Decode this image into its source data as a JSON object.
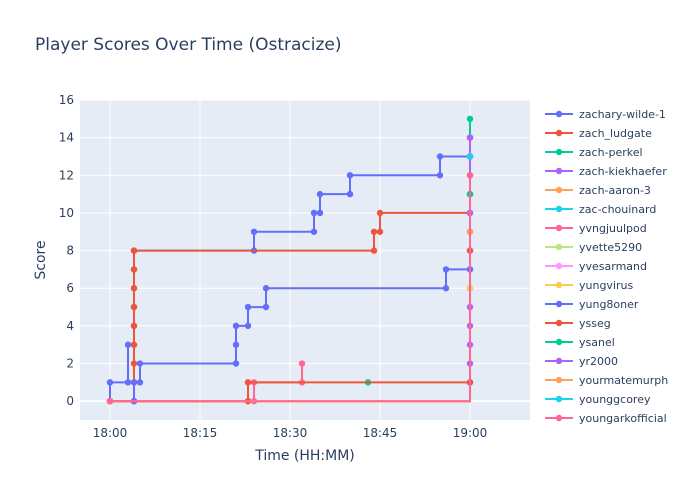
{
  "chart_data": {
    "type": "line",
    "line_shape": "step",
    "title": "Player Scores Over Time (Ostracize)",
    "xlabel": "Time (HH:MM)",
    "ylabel": "Score",
    "x_unit": "time HH:MM",
    "x_ticks": [
      "18:00",
      "18:15",
      "18:30",
      "18:45",
      "19:00"
    ],
    "xlim": [
      "17:55",
      "19:10"
    ],
    "ylim": [
      -1,
      16
    ],
    "y_ticks": [
      0,
      2,
      4,
      6,
      8,
      10,
      12,
      14,
      16
    ],
    "grid": true,
    "legend_position": "right",
    "plot_background": "#e5ecf6",
    "series": [
      {
        "name": "zachary-wilde-1",
        "color": "#636efa",
        "points": [
          [
            "18:00",
            0
          ],
          [
            "18:00",
            1
          ],
          [
            "18:03",
            1
          ],
          [
            "18:03",
            3
          ],
          [
            "18:04",
            3
          ],
          [
            "18:04",
            4
          ],
          [
            "18:04",
            5
          ],
          [
            "18:04",
            6
          ],
          [
            "18:04",
            7
          ],
          [
            "18:04",
            8
          ],
          [
            "18:24",
            8
          ],
          [
            "18:24",
            9
          ],
          [
            "18:34",
            9
          ],
          [
            "18:34",
            10
          ],
          [
            "18:35",
            10
          ],
          [
            "18:35",
            11
          ],
          [
            "18:40",
            11
          ],
          [
            "18:40",
            12
          ],
          [
            "18:55",
            12
          ],
          [
            "18:55",
            13
          ],
          [
            "19:00",
            13
          ],
          [
            "19:00",
            14
          ]
        ]
      },
      {
        "name": "zach_ludgate",
        "color": "#ef553b",
        "points": [
          [
            "18:00",
            0
          ],
          [
            "18:04",
            0
          ],
          [
            "18:04",
            1
          ],
          [
            "18:04",
            2
          ],
          [
            "18:04",
            3
          ],
          [
            "18:04",
            4
          ],
          [
            "18:04",
            5
          ],
          [
            "18:04",
            6
          ],
          [
            "18:04",
            7
          ],
          [
            "18:04",
            8
          ],
          [
            "18:44",
            8
          ],
          [
            "18:44",
            9
          ],
          [
            "18:45",
            9
          ],
          [
            "18:45",
            10
          ],
          [
            "19:00",
            10
          ],
          [
            "19:00",
            11
          ],
          [
            "19:00",
            12
          ]
        ]
      },
      {
        "name": "zach-perkel",
        "color": "#00cc96",
        "points": [
          [
            "18:43",
            1
          ]
        ]
      },
      {
        "name": "zach-kiekhaefer",
        "color": "#ab63fa",
        "points": [
          [
            "19:00",
            1
          ],
          [
            "19:00",
            2
          ],
          [
            "19:00",
            3
          ],
          [
            "19:00",
            4
          ],
          [
            "19:00",
            5
          ],
          [
            "19:00",
            6
          ],
          [
            "19:00",
            7
          ],
          [
            "19:00",
            8
          ],
          [
            "19:00",
            9
          ],
          [
            "19:00",
            10
          ],
          [
            "19:00",
            11
          ],
          [
            "19:00",
            12
          ],
          [
            "19:00",
            13
          ],
          [
            "19:00",
            14
          ]
        ]
      },
      {
        "name": "zach-aaron-3",
        "color": "#ffa15a",
        "points": [
          [
            "18:00",
            0
          ],
          [
            "19:00",
            9
          ]
        ]
      },
      {
        "name": "zac-chouinard",
        "color": "#19d3f3",
        "points": [
          [
            "19:00",
            13
          ]
        ]
      },
      {
        "name": "yvngjuulpod",
        "color": "#ff6692",
        "points": [
          [
            "18:00",
            0
          ],
          [
            "18:24",
            0
          ],
          [
            "18:24",
            1
          ],
          [
            "18:32",
            1
          ],
          [
            "18:32",
            2
          ]
        ]
      },
      {
        "name": "yvette5290",
        "color": "#b6e880",
        "points": [
          [
            "18:00",
            0
          ],
          [
            "19:00",
            6
          ]
        ]
      },
      {
        "name": "yvesarmand",
        "color": "#ff97ff",
        "points": [
          [
            "18:00",
            0
          ],
          [
            "19:00",
            7
          ]
        ]
      },
      {
        "name": "yungvirus",
        "color": "#fecb52",
        "points": [
          [
            "18:00",
            0
          ],
          [
            "19:00",
            6
          ]
        ]
      },
      {
        "name": "yung8oner",
        "color": "#636efa",
        "points": [
          [
            "18:00",
            0
          ],
          [
            "18:04",
            0
          ],
          [
            "18:04",
            1
          ],
          [
            "18:05",
            1
          ],
          [
            "18:05",
            2
          ],
          [
            "18:21",
            2
          ],
          [
            "18:21",
            3
          ],
          [
            "18:21",
            4
          ],
          [
            "18:23",
            4
          ],
          [
            "18:23",
            5
          ],
          [
            "18:26",
            5
          ],
          [
            "18:26",
            6
          ],
          [
            "18:56",
            6
          ],
          [
            "18:56",
            7
          ],
          [
            "19:00",
            7
          ],
          [
            "19:00",
            13
          ]
        ]
      },
      {
        "name": "ysseg",
        "color": "#ef553b",
        "points": [
          [
            "18:00",
            0
          ],
          [
            "18:23",
            0
          ],
          [
            "18:23",
            1
          ],
          [
            "19:00",
            1
          ],
          [
            "19:00",
            8
          ]
        ]
      },
      {
        "name": "ysanel",
        "color": "#00cc96",
        "points": [
          [
            "19:00",
            11
          ],
          [
            "19:00",
            15
          ]
        ]
      },
      {
        "name": "yr2000",
        "color": "#ab63fa",
        "points": [
          [
            "19:00",
            10
          ],
          [
            "19:00",
            14
          ]
        ]
      },
      {
        "name": "yourmatemurph",
        "color": "#ffa15a",
        "points": [
          [
            "18:00",
            0
          ],
          [
            "19:00",
            9
          ]
        ]
      },
      {
        "name": "younggcorey",
        "color": "#19d3f3",
        "points": [
          [
            "19:00",
            13
          ]
        ]
      },
      {
        "name": "youngarkofficial",
        "color": "#ff6692",
        "points": [
          [
            "18:00",
            0
          ],
          [
            "19:00",
            12
          ]
        ]
      }
    ]
  }
}
